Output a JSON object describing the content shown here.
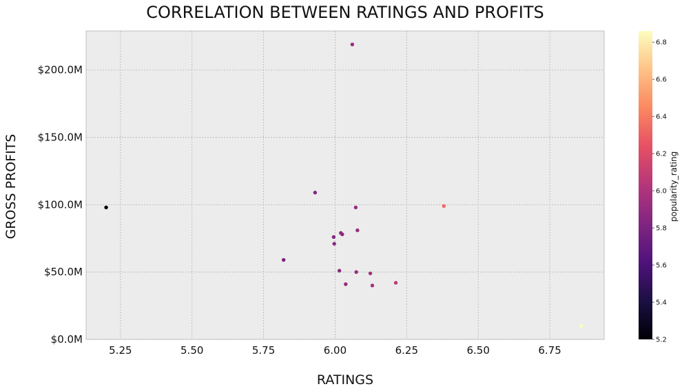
{
  "chart_data": {
    "type": "scatter",
    "title": "CORRELATION BETWEEN RATINGS AND PROFITS",
    "xlabel": "RATINGS",
    "ylabel": "GROSS PROFITS",
    "xlim": [
      5.13,
      6.94
    ],
    "ylim": [
      0,
      229
    ],
    "x_ticks": [
      5.25,
      5.5,
      5.75,
      6.0,
      6.25,
      6.5,
      6.75
    ],
    "x_tick_labels": [
      "5.25",
      "5.50",
      "5.75",
      "6.00",
      "6.25",
      "6.50",
      "6.75"
    ],
    "y_ticks": [
      0,
      50,
      100,
      150,
      200
    ],
    "y_tick_labels": [
      "$0.0M",
      "$50.0M",
      "$100.0M",
      "$150.0M",
      "$200.0M"
    ],
    "grid": true,
    "background": "#ececec",
    "colorbar": {
      "label": "popularity_rating",
      "colormap": "magma",
      "range": [
        5.2,
        6.86
      ],
      "ticks": [
        5.2,
        5.4,
        5.6,
        5.8,
        6.0,
        6.2,
        6.4,
        6.6,
        6.8
      ],
      "tick_labels": [
        "5.2",
        "5.4",
        "5.6",
        "5.8",
        "6.0",
        "6.2",
        "6.4",
        "6.6",
        "6.8"
      ]
    },
    "points": [
      {
        "x": 5.2,
        "y": 98,
        "c": 5.2
      },
      {
        "x": 5.82,
        "y": 59,
        "c": 5.78
      },
      {
        "x": 5.93,
        "y": 109,
        "c": 5.82
      },
      {
        "x": 5.995,
        "y": 76,
        "c": 5.85
      },
      {
        "x": 5.997,
        "y": 71,
        "c": 5.85
      },
      {
        "x": 6.015,
        "y": 51,
        "c": 5.87
      },
      {
        "x": 6.02,
        "y": 79,
        "c": 5.88
      },
      {
        "x": 6.025,
        "y": 78,
        "c": 5.88
      },
      {
        "x": 6.037,
        "y": 41,
        "c": 5.89
      },
      {
        "x": 6.06,
        "y": 219,
        "c": 5.91
      },
      {
        "x": 6.072,
        "y": 98,
        "c": 5.92
      },
      {
        "x": 6.074,
        "y": 50,
        "c": 5.92
      },
      {
        "x": 6.078,
        "y": 81,
        "c": 5.92
      },
      {
        "x": 6.123,
        "y": 49,
        "c": 5.96
      },
      {
        "x": 6.13,
        "y": 40,
        "c": 5.97
      },
      {
        "x": 6.212,
        "y": 42,
        "c": 6.06
      },
      {
        "x": 6.38,
        "y": 99,
        "c": 6.33
      },
      {
        "x": 6.86,
        "y": 10,
        "c": 6.86
      }
    ]
  }
}
